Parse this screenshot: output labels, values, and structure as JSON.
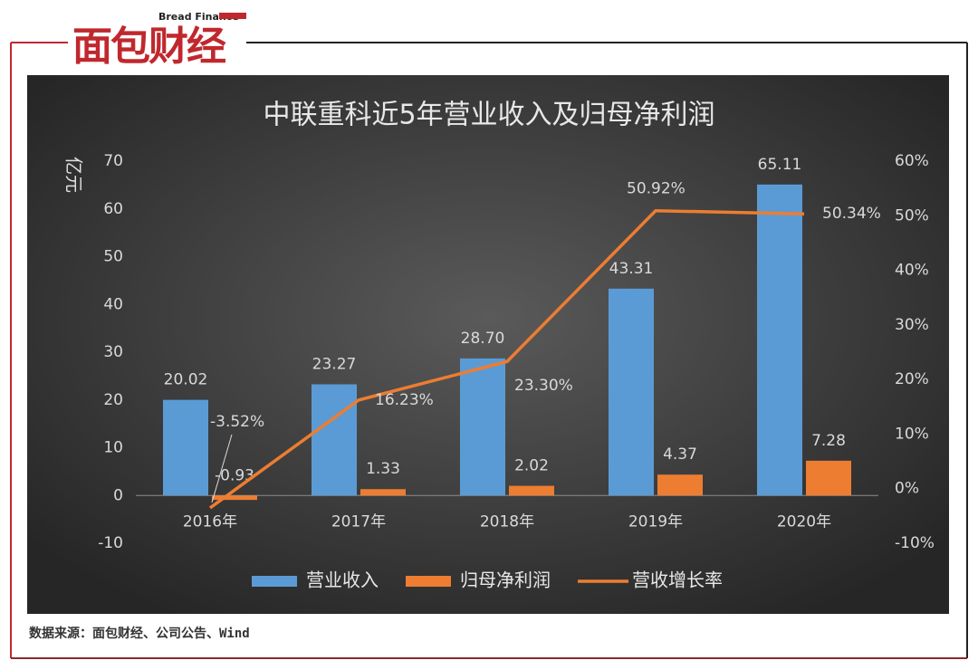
{
  "header": {
    "tagline": "Bread Finance",
    "name": "面包财经"
  },
  "chart_data": {
    "type": "bar",
    "title": "中联重科近5年营业收入及归母净利润",
    "y_label": "亿元",
    "categories": [
      "2016年",
      "2017年",
      "2018年",
      "2019年",
      "2020年"
    ],
    "series": [
      {
        "name": "营业收入",
        "color": "#5b9bd5",
        "values": [
          20.02,
          23.27,
          28.7,
          43.31,
          65.11
        ],
        "value_labels": [
          "20.02",
          "23.27",
          "28.70",
          "43.31",
          "65.11"
        ]
      },
      {
        "name": "归母净利润",
        "color": "#ed7d31",
        "values": [
          -0.93,
          1.33,
          2.02,
          4.37,
          7.28
        ]
      },
      {
        "name": "营收增长率",
        "color": "#ed7d31",
        "type": "line",
        "axis": "y2",
        "values": [
          -3.52,
          16.23,
          23.3,
          50.92,
          50.34
        ],
        "value_labels": [
          "-3.52%",
          "16.23%",
          "23.30%",
          "50.92%",
          "50.34%"
        ]
      }
    ],
    "ylim": [
      -10,
      70
    ],
    "yticks": [
      -10,
      0,
      10,
      20,
      30,
      40,
      50,
      60,
      70
    ],
    "y2lim": [
      -10,
      60
    ],
    "y2ticks": [
      {
        "value": -10,
        "label": "-10%"
      },
      {
        "value": 0,
        "label": "0%"
      },
      {
        "value": 10,
        "label": "10%"
      },
      {
        "value": 20,
        "label": "20%"
      },
      {
        "value": 30,
        "label": "30%"
      },
      {
        "value": 40,
        "label": "40%"
      },
      {
        "value": 50,
        "label": "50%"
      },
      {
        "value": 60,
        "label": "60%"
      }
    ],
    "grid": false,
    "legend": "bottom"
  },
  "footer": {
    "source": "数据来源：面包财经、公司公告、Wind"
  }
}
